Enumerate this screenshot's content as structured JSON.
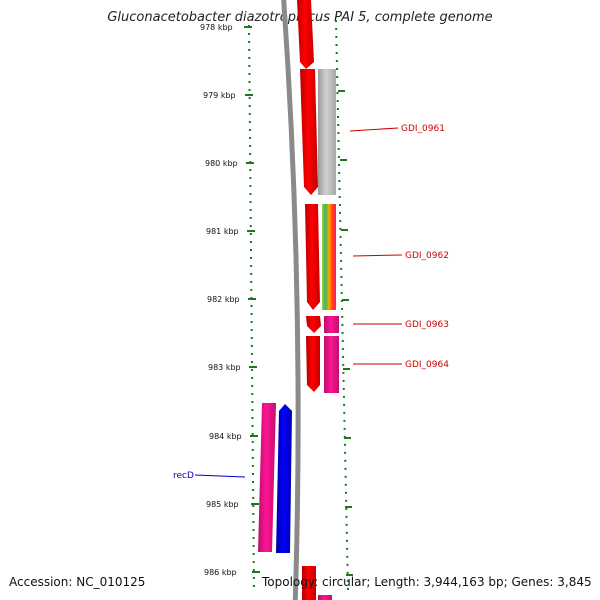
{
  "title": "Gluconacetobacter diazotrophicus PAI 5, complete genome",
  "accession": "Accession: NC_010125",
  "summary": "Topology: circular; Length: 3,944,163 bp; Genes: 3,845",
  "colors": {
    "backbone": "#8a8a8a",
    "tick": "#1a7a1a",
    "cds_forward": "#ff0000",
    "cds_reverse_pink": "#ff1493",
    "cds_blue": "#0000ff",
    "cds_gray": "#bdbdbd",
    "label_red": "#cc0000",
    "label_blue": "#0000cc"
  },
  "scale": {
    "labels": [
      "978 kbp",
      "979 kbp",
      "980 kbp",
      "981 kbp",
      "982 kbp",
      "983 kbp",
      "984 kbp",
      "985 kbp",
      "986 kbp"
    ]
  },
  "genes": [
    {
      "name": "GDI_0961",
      "color": "label_red"
    },
    {
      "name": "GDI_0962",
      "color": "label_red"
    },
    {
      "name": "GDI_0963",
      "color": "label_red"
    },
    {
      "name": "GDI_0964",
      "color": "label_red"
    },
    {
      "name": "recD",
      "color": "label_blue"
    }
  ]
}
